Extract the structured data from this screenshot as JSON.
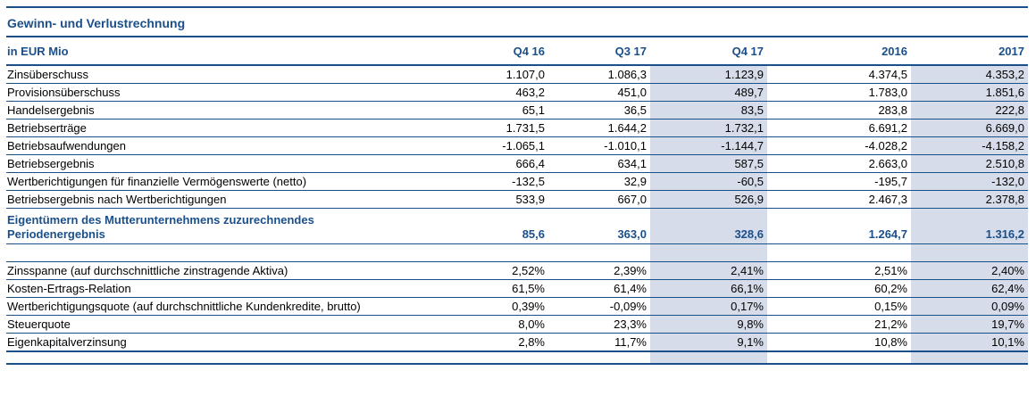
{
  "title": "Gewinn- und Verlustrechnung",
  "header": {
    "unit": "in EUR Mio",
    "columns": [
      "Q4 16",
      "Q3 17",
      "Q4 17",
      "2016",
      "2017"
    ]
  },
  "section1": [
    {
      "label": "Zinsüberschuss",
      "values": [
        "1.107,0",
        "1.086,3",
        "1.123,9",
        "4.374,5",
        "4.353,2"
      ]
    },
    {
      "label": "Provisionsüberschuss",
      "values": [
        "463,2",
        "451,0",
        "489,7",
        "1.783,0",
        "1.851,6"
      ]
    },
    {
      "label": "Handelsergebnis",
      "values": [
        "65,1",
        "36,5",
        "83,5",
        "283,8",
        "222,8"
      ]
    },
    {
      "label": "Betriebserträge",
      "values": [
        "1.731,5",
        "1.644,2",
        "1.732,1",
        "6.691,2",
        "6.669,0"
      ]
    },
    {
      "label": "Betriebsaufwendungen",
      "values": [
        "-1.065,1",
        "-1.010,1",
        "-1.144,7",
        "-4.028,2",
        "-4.158,2"
      ]
    },
    {
      "label": "Betriebsergebnis",
      "values": [
        "666,4",
        "634,1",
        "587,5",
        "2.663,0",
        "2.510,8"
      ]
    },
    {
      "label": "Wertberichtigungen für finanzielle Vermögenswerte (netto)",
      "values": [
        "-132,5",
        "32,9",
        "-60,5",
        "-195,7",
        "-132,0"
      ]
    },
    {
      "label": "Betriebsergebnis nach Wertberichtigungen",
      "values": [
        "533,9",
        "667,0",
        "526,9",
        "2.467,3",
        "2.378,8"
      ]
    }
  ],
  "net_result": {
    "label": "Eigentümern des Mutterunternehmens zuzurechnendes Periodenergebnis",
    "values": [
      "85,6",
      "363,0",
      "328,6",
      "1.264,7",
      "1.316,2"
    ]
  },
  "section2": [
    {
      "label": "Zinsspanne (auf durchschnittliche zinstragende Aktiva)",
      "values": [
        "2,52%",
        "2,39%",
        "2,41%",
        "2,51%",
        "2,40%"
      ]
    },
    {
      "label": "Kosten-Ertrags-Relation",
      "values": [
        "61,5%",
        "61,4%",
        "66,1%",
        "60,2%",
        "62,4%"
      ]
    },
    {
      "label": "Wertberichtigungsquote (auf durchschnittliche Kundenkredite, brutto)",
      "values": [
        "0,39%",
        "-0,09%",
        "0,17%",
        "0,15%",
        "0,09%"
      ]
    },
    {
      "label": "Steuerquote",
      "values": [
        "8,0%",
        "23,3%",
        "9,8%",
        "21,2%",
        "19,7%"
      ]
    },
    {
      "label": "Eigenkapitalverzinsung",
      "values": [
        "2,8%",
        "11,7%",
        "9,1%",
        "10,8%",
        "10,1%"
      ]
    }
  ]
}
